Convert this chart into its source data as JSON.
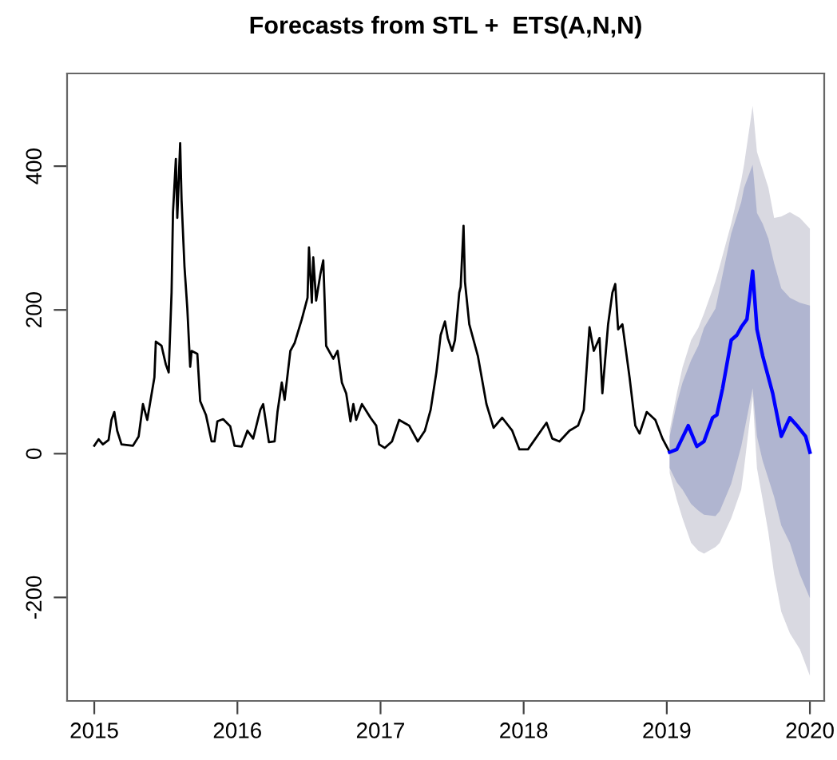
{
  "chart_data": {
    "type": "line",
    "title": "Forecasts from STL +  ETS(A,N,N)",
    "xlim": [
      2014.81,
      2020.1
    ],
    "xticks": [
      2015,
      2016,
      2017,
      2018,
      2019,
      2020
    ],
    "ylim": [
      -344,
      529
    ],
    "yticks": [
      -200,
      0,
      200,
      400
    ],
    "grid": false,
    "marker": "none",
    "line_style": "solid",
    "series": [
      {
        "color": "#000000",
        "x": [
          2015.0,
          2015.03,
          2015.06,
          2015.1,
          2015.12,
          2015.14,
          2015.16,
          2015.19,
          2015.27,
          2015.31,
          2015.34,
          2015.37,
          2015.42,
          2015.43,
          2015.47,
          2015.5,
          2015.52,
          2015.54,
          2015.55,
          2015.57,
          2015.58,
          2015.6,
          2015.61,
          2015.63,
          2015.65,
          2015.67,
          2015.68,
          2015.72,
          2015.74,
          2015.78,
          2015.82,
          2015.84,
          2015.86,
          2015.9,
          2015.95,
          2015.98,
          2016.03,
          2016.07,
          2016.11,
          2016.16,
          2016.18,
          2016.22,
          2016.26,
          2016.28,
          2016.31,
          2016.33,
          2016.37,
          2016.4,
          2016.45,
          2016.49,
          2016.5,
          2016.52,
          2016.53,
          2016.55,
          2016.58,
          2016.6,
          2016.62,
          2016.67,
          2016.7,
          2016.73,
          2016.76,
          2016.79,
          2016.81,
          2016.83,
          2016.87,
          2016.93,
          2016.97,
          2016.99,
          2017.03,
          2017.08,
          2017.13,
          2017.2,
          2017.26,
          2017.31,
          2017.35,
          2017.39,
          2017.42,
          2017.45,
          2017.47,
          2017.5,
          2017.52,
          2017.55,
          2017.56,
          2017.58,
          2017.59,
          2017.62,
          2017.68,
          2017.74,
          2017.79,
          2017.85,
          2017.92,
          2017.97,
          2018.03,
          2018.16,
          2018.2,
          2018.25,
          2018.32,
          2018.38,
          2018.42,
          2018.46,
          2018.49,
          2018.53,
          2018.55,
          2018.59,
          2018.62,
          2018.64,
          2018.66,
          2018.69,
          2018.74,
          2018.78,
          2018.81,
          2018.86,
          2018.92,
          2018.97,
          2019.02
        ],
        "values": [
          11,
          20,
          13,
          19,
          47,
          58,
          32,
          13,
          11,
          24,
          69,
          47,
          106,
          156,
          150,
          124,
          113,
          224,
          336,
          410,
          328,
          432,
          352,
          261,
          202,
          121,
          143,
          139,
          73,
          54,
          17,
          17,
          45,
          48,
          38,
          11,
          10,
          32,
          21,
          61,
          69,
          16,
          17,
          58,
          99,
          75,
          143,
          154,
          187,
          217,
          287,
          210,
          273,
          213,
          250,
          269,
          150,
          132,
          143,
          99,
          84,
          45,
          69,
          47,
          69,
          50,
          39,
          13,
          8,
          17,
          47,
          39,
          17,
          32,
          61,
          113,
          165,
          184,
          161,
          143,
          158,
          224,
          232,
          317,
          239,
          180,
          136,
          69,
          36,
          50,
          32,
          6,
          6,
          43,
          21,
          17,
          32,
          39,
          61,
          176,
          143,
          161,
          84,
          180,
          224,
          236,
          173,
          180,
          106,
          39,
          28,
          58,
          47,
          21,
          2
        ]
      },
      {
        "color": "#d9d9e1",
        "x": [
          2019.02,
          2019.07,
          2019.11,
          2019.17,
          2019.22,
          2019.26,
          2019.34,
          2019.37,
          2019.45,
          2019.52,
          2019.54,
          2019.6,
          2019.63,
          2019.67,
          2019.71,
          2019.75,
          2019.8,
          2019.86,
          2019.93,
          2020.0
        ],
        "values": [
          null,
          null,
          null,
          null,
          null,
          null,
          null,
          null,
          null,
          null,
          null,
          null,
          null,
          null,
          null,
          null,
          null,
          null,
          null,
          null
        ],
        "lower": [
          -27,
          -64,
          -90,
          -124,
          -135,
          -139,
          -130,
          -124,
          -90,
          -50,
          -20,
          80,
          -20,
          -64,
          -110,
          -168,
          -220,
          -250,
          -272,
          -309
        ],
        "upper": [
          32,
          84,
          120,
          158,
          175,
          195,
          240,
          261,
          320,
          380,
          402,
          484,
          420,
          395,
          370,
          328,
          330,
          336,
          328,
          313
        ]
      },
      {
        "color": "#b0b5d0",
        "x": [
          2019.02,
          2019.07,
          2019.11,
          2019.17,
          2019.22,
          2019.26,
          2019.34,
          2019.37,
          2019.45,
          2019.52,
          2019.54,
          2019.6,
          2019.63,
          2019.67,
          2019.71,
          2019.75,
          2019.8,
          2019.86,
          2019.93,
          2020.0
        ],
        "values": [
          null,
          null,
          null,
          null,
          null,
          null,
          null,
          null,
          null,
          null,
          null,
          null,
          null,
          null,
          null,
          null,
          null,
          null,
          null,
          null
        ],
        "lower": [
          -20,
          -40,
          -50,
          -70,
          -79,
          -85,
          -87,
          -80,
          -42,
          10,
          30,
          91,
          24,
          -10,
          -35,
          -60,
          -100,
          -124,
          -168,
          -201
        ],
        "upper": [
          24,
          70,
          99,
          130,
          150,
          175,
          202,
          230,
          306,
          350,
          370,
          402,
          335,
          320,
          299,
          265,
          230,
          217,
          210,
          206
        ]
      },
      {
        "color": "#0000ff",
        "x": [
          2019.02,
          2019.07,
          2019.15,
          2019.21,
          2019.26,
          2019.32,
          2019.35,
          2019.39,
          2019.45,
          2019.49,
          2019.52,
          2019.56,
          2019.6,
          2019.63,
          2019.67,
          2019.74,
          2019.8,
          2019.86,
          2019.91,
          2019.97,
          2020.0
        ],
        "values": [
          2,
          6,
          39,
          10,
          17,
          50,
          54,
          91,
          158,
          165,
          176,
          187,
          254,
          173,
          136,
          84,
          24,
          50,
          39,
          24,
          2
        ]
      }
    ]
  }
}
